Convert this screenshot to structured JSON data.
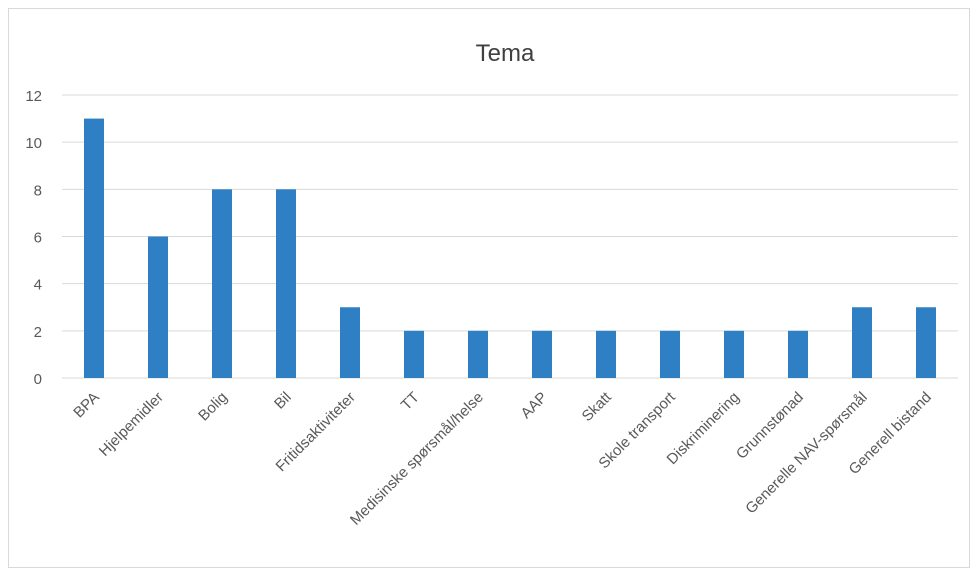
{
  "chart_data": {
    "type": "bar",
    "title": "Tema",
    "xlabel": "",
    "ylabel": "",
    "categories": [
      "BPA",
      "Hjelpemidler",
      "Bolig",
      "Bil",
      "Fritidsaktiviteter",
      "TT",
      "Medisinske spørsmål/helse",
      "AAP",
      "Skatt",
      "Skole transport",
      "Diskriminering",
      "Grunnstønad",
      "Generelle NAV-spørsmål",
      "Generell bistand"
    ],
    "values": [
      11,
      6,
      8,
      8,
      3,
      2,
      2,
      2,
      2,
      2,
      2,
      2,
      3,
      3
    ],
    "ylim": [
      0,
      12
    ],
    "yticks": [
      0,
      2,
      4,
      6,
      8,
      10,
      12
    ],
    "grid": true,
    "legend": "none",
    "colors": {
      "bar": "#2e7fc3",
      "grid": "#d9d9d9",
      "text": "#595959",
      "title": "#404040"
    }
  }
}
